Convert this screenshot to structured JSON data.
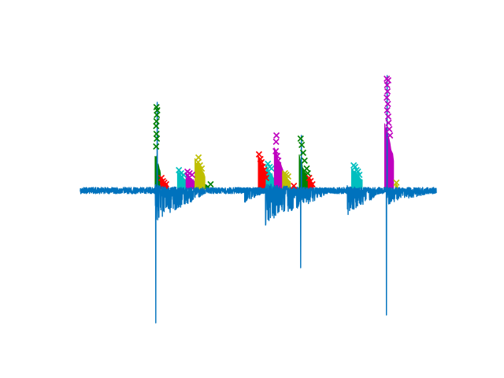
{
  "chart_data": {
    "type": "line",
    "title": "",
    "xlabel": "",
    "ylabel": "",
    "axes_visible": false,
    "grid": false,
    "legend": "none",
    "xlim": [
      0,
      1000
    ],
    "ylim": [
      -1.0,
      1.0
    ],
    "colors": {
      "signal": "#0072bd",
      "peak_groups": [
        "#008000",
        "#ff0000",
        "#00bfbf",
        "#bf00bf",
        "#bfbf00"
      ]
    },
    "signal": {
      "baseline": 0.0,
      "noise_amplitude": 0.02,
      "bursts": [
        {
          "start": 210,
          "end": 360,
          "pos_amp": 0.05,
          "neg_amp": 0.28
        },
        {
          "start": 460,
          "end": 520,
          "pos_amp": 0.03,
          "neg_amp": 0.12
        },
        {
          "start": 520,
          "end": 700,
          "pos_amp": 0.06,
          "neg_amp": 0.3
        },
        {
          "start": 750,
          "end": 850,
          "pos_amp": 0.04,
          "neg_amp": 0.22
        },
        {
          "start": 860,
          "end": 1000,
          "pos_amp": 0.03,
          "neg_amp": 0.12
        }
      ],
      "spikes": [
        {
          "x": 212,
          "y": -0.85
        },
        {
          "x": 216,
          "y": 0.55
        },
        {
          "x": 619,
          "y": -0.5
        },
        {
          "x": 621,
          "y": 0.34
        },
        {
          "x": 860,
          "y": -0.8
        },
        {
          "x": 862,
          "y": 0.72
        }
      ]
    },
    "peak_groups": [
      {
        "color_index": 0,
        "x_start": 210,
        "x_end": 225,
        "top": 0.24,
        "markers": [
          [
            214,
            0.52
          ],
          [
            216,
            0.5
          ],
          [
            215,
            0.47
          ],
          [
            214,
            0.43
          ],
          [
            213,
            0.4
          ],
          [
            214,
            0.35
          ],
          [
            215,
            0.32
          ],
          [
            213,
            0.27
          ]
        ]
      },
      {
        "color_index": 1,
        "x_start": 225,
        "x_end": 245,
        "top": 0.07,
        "markers": [
          [
            228,
            0.07
          ],
          [
            232,
            0.05
          ],
          [
            236,
            0.04
          ],
          [
            241,
            0.03
          ]
        ]
      },
      {
        "color_index": 2,
        "x_start": 273,
        "x_end": 298,
        "top": 0.12,
        "markers": [
          [
            277,
            0.12
          ],
          [
            283,
            0.1
          ],
          [
            290,
            0.09
          ]
        ]
      },
      {
        "color_index": 3,
        "x_start": 297,
        "x_end": 322,
        "top": 0.11,
        "markers": [
          [
            301,
            0.11
          ],
          [
            307,
            0.1
          ],
          [
            314,
            0.09
          ]
        ]
      },
      {
        "color_index": 4,
        "x_start": 322,
        "x_end": 350,
        "top": 0.2,
        "markers": [
          [
            332,
            0.2
          ],
          [
            331,
            0.17
          ],
          [
            336,
            0.15
          ],
          [
            341,
            0.13
          ]
        ]
      },
      {
        "color_index": 0,
        "x_start": 352,
        "x_end": 362,
        "top": 0.03,
        "markers": [
          [
            366,
            0.03
          ]
        ]
      },
      {
        "color_index": 1,
        "x_start": 500,
        "x_end": 525,
        "top": 0.22,
        "markers": [
          [
            502,
            0.22
          ],
          [
            506,
            0.19
          ],
          [
            509,
            0.17
          ],
          [
            512,
            0.14
          ],
          [
            516,
            0.12
          ],
          [
            519,
            0.09
          ],
          [
            522,
            0.07
          ]
        ]
      },
      {
        "color_index": 2,
        "x_start": 522,
        "x_end": 545,
        "top": 0.16,
        "markers": [
          [
            527,
            0.16
          ],
          [
            532,
            0.14
          ],
          [
            537,
            0.13
          ]
        ]
      },
      {
        "color_index": 3,
        "x_start": 545,
        "x_end": 570,
        "top": 0.27,
        "markers": [
          [
            551,
            0.34
          ],
          [
            550,
            0.3
          ],
          [
            549,
            0.24
          ],
          [
            553,
            0.21
          ],
          [
            556,
            0.18
          ],
          [
            552,
            0.13
          ]
        ]
      },
      {
        "color_index": 4,
        "x_start": 568,
        "x_end": 590,
        "top": 0.11,
        "markers": [
          [
            575,
            0.1
          ],
          [
            579,
            0.09
          ],
          [
            584,
            0.08
          ]
        ]
      },
      {
        "color_index": 1,
        "x_start": 596,
        "x_end": 605,
        "top": 0.02,
        "markers": [
          [
            600,
            0.02
          ]
        ]
      },
      {
        "color_index": 0,
        "x_start": 615,
        "x_end": 633,
        "top": 0.22,
        "markers": [
          [
            619,
            0.32
          ],
          [
            622,
            0.28
          ],
          [
            626,
            0.23
          ],
          [
            630,
            0.18
          ]
        ]
      },
      {
        "color_index": 0,
        "x_start": 631,
        "x_end": 642,
        "top": 0.12,
        "markers": [
          [
            636,
            0.13
          ],
          [
            639,
            0.1
          ]
        ]
      },
      {
        "color_index": 1,
        "x_start": 640,
        "x_end": 655,
        "top": 0.07,
        "markers": [
          [
            643,
            0.07
          ],
          [
            647,
            0.05
          ],
          [
            652,
            0.03
          ]
        ]
      },
      {
        "color_index": 2,
        "x_start": 762,
        "x_end": 792,
        "top": 0.14,
        "markers": [
          [
            768,
            0.15
          ],
          [
            772,
            0.14
          ],
          [
            776,
            0.12
          ],
          [
            780,
            0.11
          ],
          [
            784,
            0.09
          ]
        ]
      },
      {
        "color_index": 3,
        "x_start": 855,
        "x_end": 880,
        "top": 0.45,
        "markers": [
          [
            861,
            0.7
          ],
          [
            865,
            0.69
          ],
          [
            862,
            0.66
          ],
          [
            863,
            0.62
          ],
          [
            861,
            0.58
          ],
          [
            864,
            0.54
          ],
          [
            862,
            0.5
          ],
          [
            865,
            0.46
          ],
          [
            866,
            0.42
          ],
          [
            868,
            0.38
          ],
          [
            870,
            0.34
          ]
        ]
      },
      {
        "color_index": 4,
        "x_start": 885,
        "x_end": 892,
        "top": 0.04,
        "markers": [
          [
            888,
            0.04
          ]
        ]
      }
    ]
  }
}
